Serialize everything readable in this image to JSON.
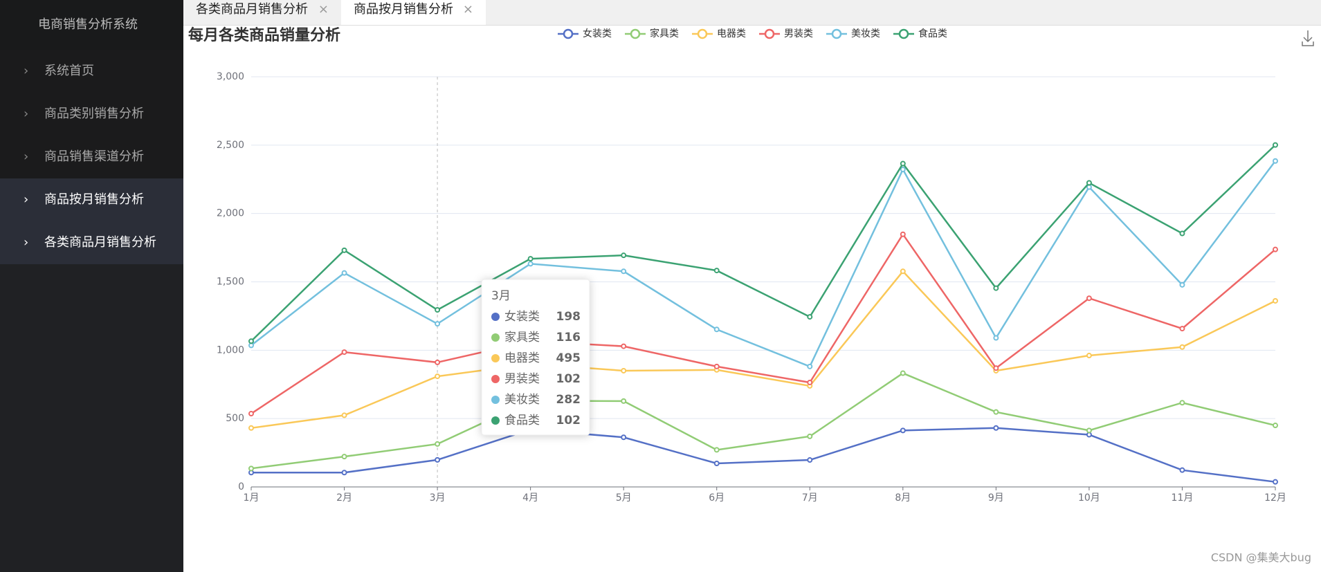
{
  "sidebar": {
    "title": "电商销售分析系统",
    "items": [
      "系统首页",
      "商品类别销售分析",
      "商品销售渠道分析",
      "商品按月销售分析",
      "各类商品月销售分析"
    ]
  },
  "tabs": [
    "各类商品月销售分析",
    "商品按月销售分析"
  ],
  "watermark": "CSDN @集美大bug",
  "chart_data": {
    "type": "line",
    "stacked": true,
    "title": "每月各类商品销量分析",
    "categories": [
      "1月",
      "2月",
      "3月",
      "4月",
      "5月",
      "6月",
      "7月",
      "8月",
      "9月",
      "10月",
      "11月",
      "12月"
    ],
    "series": [
      {
        "name": "女装类",
        "color": "#5470c6",
        "values": [
          105,
          105,
          198,
          420,
          363,
          172,
          197,
          413,
          431,
          382,
          123,
          37
        ]
      },
      {
        "name": "家具类",
        "color": "#91cc75",
        "values": [
          30,
          117,
          116,
          210,
          265,
          99,
          173,
          419,
          117,
          31,
          493,
          413
        ]
      },
      {
        "name": "电器类",
        "color": "#fac858",
        "values": [
          296,
          302,
          495,
          270,
          222,
          585,
          369,
          745,
          302,
          548,
          407,
          911
        ]
      },
      {
        "name": "男装类",
        "color": "#ee6666",
        "values": [
          105,
          462,
          102,
          166,
          179,
          25,
          25,
          271,
          19,
          419,
          135,
          376
        ]
      },
      {
        "name": "美妆类",
        "color": "#73c0de",
        "values": [
          499,
          579,
          282,
          566,
          548,
          271,
          117,
          474,
          221,
          813,
          320,
          647
        ]
      },
      {
        "name": "食品类",
        "color": "#3ba272",
        "values": [
          31,
          166,
          102,
          37,
          117,
          431,
          363,
          43,
          364,
          31,
          376,
          117
        ]
      }
    ],
    "ylim": [
      0,
      3000
    ],
    "yticks": [
      0,
      500,
      {
        "value": 1000,
        "label": "1,000"
      },
      {
        "value": 1500,
        "label": "1,500"
      },
      {
        "value": 2000,
        "label": "2,000"
      },
      {
        "value": 2500,
        "label": "2,500"
      },
      {
        "value": 3000,
        "label": "3,000"
      }
    ],
    "grid": true,
    "legend": "top"
  }
}
